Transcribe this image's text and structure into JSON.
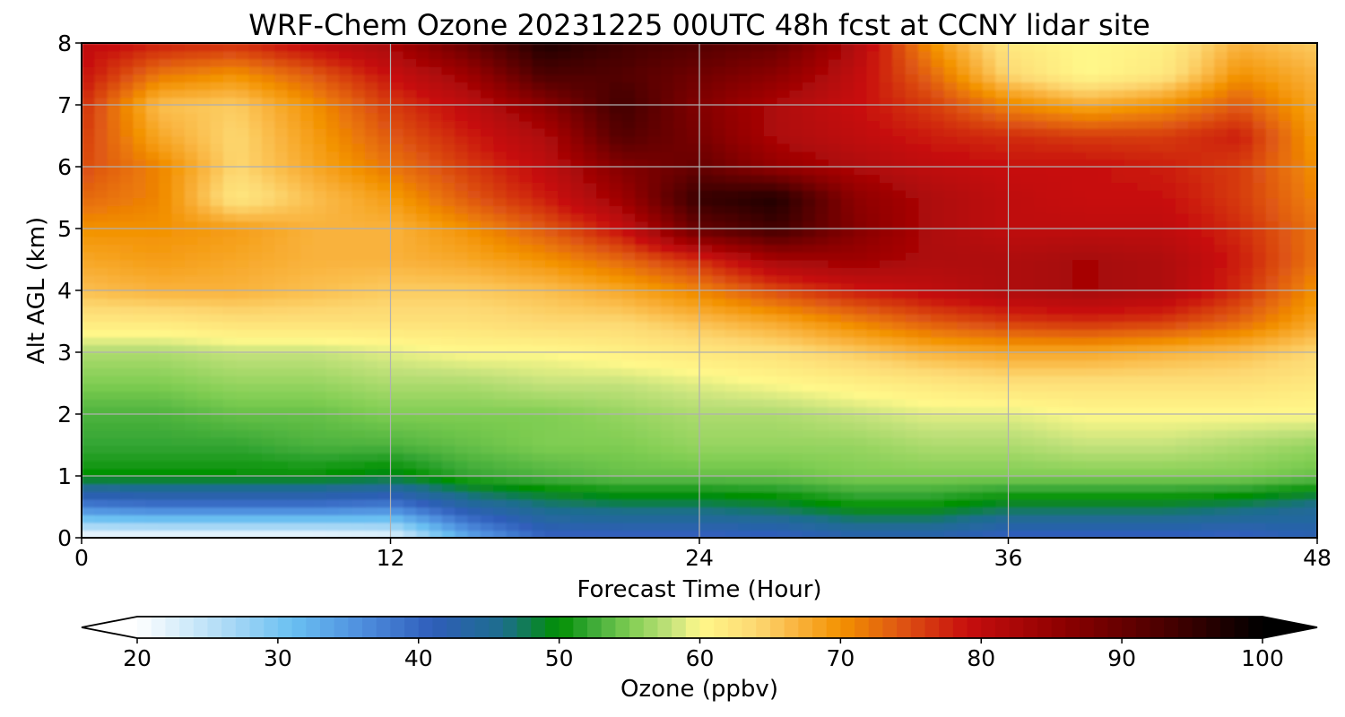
{
  "chart_data": {
    "type": "heatmap",
    "title": "WRF-Chem Ozone  20231225 00UTC 48h fcst at CCNY lidar site",
    "xlabel": "Forecast Time (Hour)",
    "ylabel": "Alt AGL (km)",
    "xlim": [
      0,
      48
    ],
    "ylim": [
      0,
      8
    ],
    "xticks": [
      0,
      12,
      24,
      36,
      48
    ],
    "yticks": [
      0,
      1,
      2,
      3,
      4,
      5,
      6,
      7,
      8
    ],
    "grid": true,
    "units": "ppbv",
    "x": [
      0,
      3,
      6,
      9,
      12,
      15,
      18,
      21,
      24,
      27,
      30,
      33,
      36,
      39,
      42,
      45,
      48
    ],
    "y": [
      0,
      0.5,
      1,
      1.5,
      2,
      2.5,
      3,
      3.5,
      4,
      4.5,
      5,
      5.5,
      6,
      6.5,
      7,
      7.5,
      8
    ],
    "z": [
      [
        20,
        20,
        20,
        20,
        21,
        33,
        40,
        40,
        40,
        40,
        42,
        42,
        40,
        40,
        40,
        40,
        42
      ],
      [
        37,
        38,
        38,
        38,
        37,
        43,
        46,
        47,
        47,
        48,
        50,
        50,
        48,
        48,
        48,
        47,
        45
      ],
      [
        50,
        50,
        50,
        50,
        49,
        52,
        53,
        54,
        54,
        54,
        55,
        55,
        55,
        55,
        55,
        55,
        54
      ],
      [
        52,
        52,
        52,
        53,
        53,
        54,
        55,
        55,
        56,
        56,
        56,
        57,
        57,
        58,
        58,
        57,
        56
      ],
      [
        53,
        53,
        54,
        54,
        55,
        55,
        55,
        56,
        57,
        57,
        58,
        59,
        59,
        60,
        60,
        60,
        60
      ],
      [
        55,
        55,
        56,
        56,
        57,
        57,
        58,
        58,
        59,
        60,
        61,
        62,
        63,
        63,
        63,
        63,
        62
      ],
      [
        57,
        57,
        58,
        58,
        59,
        60,
        60,
        61,
        62,
        63,
        65,
        67,
        68,
        68,
        67,
        66,
        64
      ],
      [
        62,
        62,
        63,
        63,
        63,
        63,
        64,
        64,
        66,
        68,
        71,
        74,
        76,
        77,
        76,
        73,
        68
      ],
      [
        66,
        67,
        67,
        66,
        65,
        65,
        66,
        68,
        71,
        75,
        78,
        80,
        82,
        83,
        82,
        77,
        70
      ],
      [
        68,
        69,
        68,
        67,
        67,
        68,
        70,
        73,
        77,
        83,
        84,
        82,
        82,
        83,
        82,
        78,
        72
      ],
      [
        70,
        70,
        69,
        67,
        67,
        70,
        74,
        79,
        90,
        94,
        87,
        82,
        80,
        80,
        80,
        77,
        72
      ],
      [
        73,
        71,
        62,
        66,
        69,
        74,
        78,
        84,
        95,
        97,
        86,
        82,
        80,
        79,
        79,
        76,
        71
      ],
      [
        75,
        71,
        64,
        68,
        72,
        76,
        80,
        87,
        90,
        85,
        82,
        80,
        79,
        79,
        78,
        76,
        70
      ],
      [
        76,
        68,
        64,
        69,
        74,
        78,
        82,
        92,
        88,
        82,
        80,
        78,
        77,
        76,
        76,
        78,
        69
      ],
      [
        77,
        66,
        65,
        70,
        76,
        80,
        86,
        94,
        87,
        82,
        79,
        76,
        71,
        68,
        70,
        74,
        68
      ],
      [
        79,
        72,
        70,
        74,
        79,
        84,
        93,
        92,
        89,
        86,
        80,
        73,
        64,
        60,
        62,
        70,
        67
      ],
      [
        80,
        78,
        77,
        80,
        83,
        90,
        97,
        94,
        92,
        90,
        82,
        70,
        62,
        60,
        61,
        67,
        65
      ]
    ],
    "colorbar": {
      "label": "Ozone  (ppbv)",
      "ticks": [
        20,
        30,
        40,
        50,
        60,
        70,
        80,
        90,
        100
      ],
      "min": 20,
      "max": 100,
      "extend": "both",
      "colormap_stops": [
        {
          "v": 20,
          "color": "#ffffff"
        },
        {
          "v": 27,
          "color": "#a3d6f5"
        },
        {
          "v": 31,
          "color": "#6ac0f2"
        },
        {
          "v": 36,
          "color": "#4e8ede"
        },
        {
          "v": 41,
          "color": "#2f5dba"
        },
        {
          "v": 46,
          "color": "#1d6e8c"
        },
        {
          "v": 50,
          "color": "#009000"
        },
        {
          "v": 52,
          "color": "#33a533"
        },
        {
          "v": 55,
          "color": "#7fcd52"
        },
        {
          "v": 58,
          "color": "#c4e27c"
        },
        {
          "v": 60,
          "color": "#fff88a"
        },
        {
          "v": 64,
          "color": "#fdd872"
        },
        {
          "v": 67,
          "color": "#f9b23c"
        },
        {
          "v": 70,
          "color": "#f39200"
        },
        {
          "v": 74,
          "color": "#e05a12"
        },
        {
          "v": 79,
          "color": "#c70e0e"
        },
        {
          "v": 86,
          "color": "#8c0000"
        },
        {
          "v": 93,
          "color": "#4a0000"
        },
        {
          "v": 100,
          "color": "#000000"
        }
      ]
    }
  }
}
